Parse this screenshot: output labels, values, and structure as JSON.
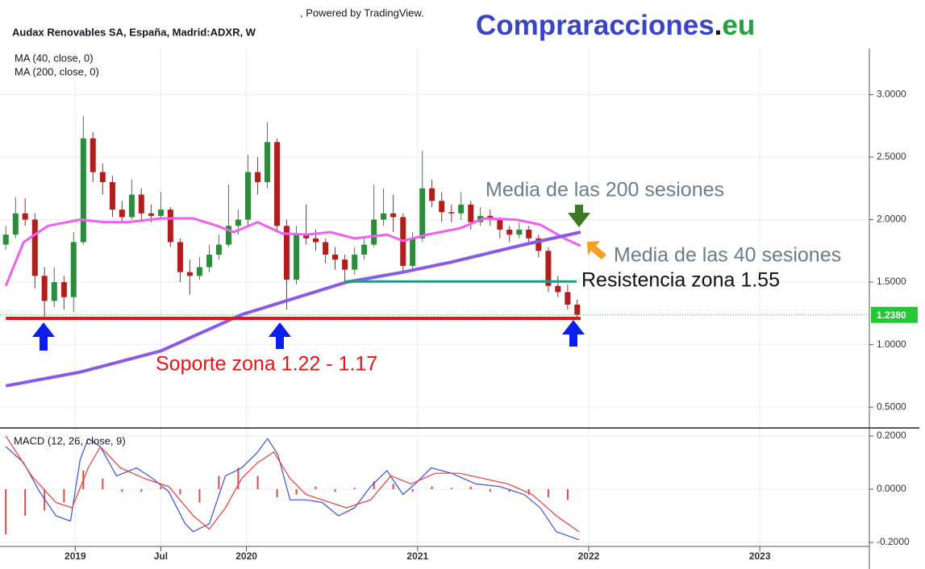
{
  "header": ", Powered by TradingView.",
  "brand": [
    "Compraracciones",
    ".",
    "eu"
  ],
  "chart_data": [
    {
      "type": "candlestick",
      "title": "Audax Renovables SA, España, Madrid:ADXR, W",
      "up_color": "#2e8b3e",
      "down_color": "#b01e1e",
      "xlim": [
        2018.56,
        2023.64
      ],
      "xticks": [
        {
          "value": 2019,
          "label": "2019"
        },
        {
          "value": 2019.5,
          "label": "Jul"
        },
        {
          "value": 2020,
          "label": "2020"
        },
        {
          "value": 2021,
          "label": "2021"
        },
        {
          "value": 2022,
          "label": "2022"
        },
        {
          "value": 2023,
          "label": "2023"
        }
      ],
      "ylim": [
        0.34,
        3.37
      ],
      "yticks": [
        {
          "value": 0.5,
          "label": "0.5000"
        },
        {
          "value": 1,
          "label": "1.0000"
        },
        {
          "value": 1.5,
          "label": "1.5000"
        },
        {
          "value": 2,
          "label": "2.0000"
        },
        {
          "value": 2.5,
          "label": "2.5000"
        },
        {
          "value": 3,
          "label": "3.0000"
        }
      ],
      "grid": true,
      "x": [
        2018.594,
        2018.651,
        2018.707,
        2018.764,
        2018.82,
        2018.877,
        2018.934,
        2018.99,
        2019.047,
        2019.103,
        2019.16,
        2019.217,
        2019.273,
        2019.33,
        2019.386,
        2019.443,
        2019.5,
        2019.556,
        2019.613,
        2019.669,
        2019.726,
        2019.783,
        2019.839,
        2019.896,
        2019.952,
        2020.009,
        2020.066,
        2020.122,
        2020.179,
        2020.235,
        2020.292,
        2020.349,
        2020.405,
        2020.462,
        2020.518,
        2020.575,
        2020.632,
        2020.688,
        2020.745,
        2020.801,
        2020.858,
        2020.915,
        2020.971,
        2021.028,
        2021.084,
        2021.141,
        2021.198,
        2021.254,
        2021.311,
        2021.367,
        2021.424,
        2021.481,
        2021.537,
        2021.594,
        2021.65,
        2021.707,
        2021.764,
        2021.82,
        2021.877,
        2021.933
      ],
      "open": [
        1.8,
        1.88,
        2.05,
        2.0,
        1.55,
        1.35,
        1.5,
        1.38,
        1.82,
        2.65,
        2.38,
        2.3,
        2.08,
        2.02,
        2.2,
        2.05,
        2.03,
        2.08,
        1.82,
        1.58,
        1.55,
        1.62,
        1.72,
        1.8,
        1.95,
        2.0,
        2.38,
        2.3,
        2.62,
        1.95,
        1.52,
        1.88,
        1.85,
        1.82,
        1.72,
        1.68,
        1.6,
        1.72,
        1.8,
        2.0,
        2.05,
        2.02,
        1.63,
        1.85,
        2.25,
        2.15,
        2.06,
        2.05,
        2.12,
        1.98,
        2.03,
        2.0,
        1.92,
        1.88,
        1.92,
        1.85,
        1.75,
        1.47,
        1.42,
        1.32
      ],
      "high": [
        1.95,
        2.18,
        2.17,
        2.05,
        1.62,
        1.62,
        1.55,
        1.9,
        2.83,
        2.7,
        2.45,
        2.35,
        2.15,
        2.32,
        2.25,
        2.12,
        2.22,
        2.1,
        1.85,
        1.68,
        1.7,
        1.8,
        1.88,
        2.28,
        2.08,
        2.52,
        2.5,
        2.78,
        2.65,
        2.0,
        1.95,
        2.12,
        1.92,
        1.85,
        1.78,
        1.72,
        1.78,
        1.85,
        2.28,
        2.25,
        2.2,
        2.05,
        1.9,
        2.55,
        2.32,
        2.22,
        2.12,
        2.22,
        2.15,
        2.1,
        2.08,
        2.02,
        1.95,
        1.98,
        1.95,
        1.88,
        1.78,
        1.55,
        1.48,
        1.36
      ],
      "low": [
        1.76,
        1.85,
        1.95,
        1.45,
        1.22,
        1.3,
        1.28,
        1.26,
        1.8,
        2.3,
        2.2,
        2.02,
        1.98,
        2.0,
        2.0,
        1.98,
        2.0,
        1.78,
        1.5,
        1.4,
        1.52,
        1.58,
        1.68,
        1.78,
        1.88,
        1.95,
        2.2,
        2.25,
        1.9,
        1.28,
        1.48,
        1.8,
        1.75,
        1.65,
        1.6,
        1.48,
        1.56,
        1.68,
        1.78,
        1.95,
        1.9,
        1.58,
        1.6,
        1.82,
        2.1,
        1.98,
        1.98,
        2.0,
        1.92,
        1.95,
        1.95,
        1.85,
        1.82,
        1.85,
        1.8,
        1.7,
        1.42,
        1.38,
        1.28,
        1.22
      ],
      "close": [
        1.88,
        2.05,
        2.0,
        1.55,
        1.35,
        1.5,
        1.38,
        1.82,
        2.65,
        2.38,
        2.3,
        2.08,
        2.02,
        2.2,
        2.05,
        2.03,
        2.08,
        1.82,
        1.58,
        1.55,
        1.62,
        1.72,
        1.8,
        1.95,
        2.0,
        2.38,
        2.3,
        2.62,
        1.95,
        1.52,
        1.88,
        1.85,
        1.82,
        1.72,
        1.68,
        1.6,
        1.72,
        1.8,
        2.0,
        2.05,
        2.02,
        1.63,
        1.85,
        2.25,
        2.15,
        2.06,
        2.05,
        2.12,
        1.98,
        2.03,
        2.0,
        1.92,
        1.88,
        1.92,
        1.85,
        1.75,
        1.47,
        1.42,
        1.32,
        1.24
      ],
      "series": [
        {
          "name": "MA (40, close, 0)",
          "color": "#f060f0",
          "width": 3,
          "x": [
            2018.594,
            2018.698,
            2018.84,
            2019.028,
            2019.17,
            2019.311,
            2019.5,
            2019.689,
            2019.83,
            2019.925,
            2020.066,
            2020.208,
            2020.349,
            2020.491,
            2020.632,
            2020.821,
            2020.915,
            2021.057,
            2021.245,
            2021.387,
            2021.575,
            2021.717,
            2021.858,
            2021.953
          ],
          "values": [
            1.47,
            1.82,
            1.95,
            2.0,
            1.98,
            1.98,
            2.01,
            2.01,
            1.95,
            1.9,
            1.98,
            1.89,
            1.88,
            1.9,
            1.85,
            1.88,
            1.83,
            1.88,
            1.93,
            2.01,
            2.0,
            1.96,
            1.85,
            1.79
          ]
        },
        {
          "name": "MA (200, close, 0)",
          "color": "#8a5ae6",
          "width": 4,
          "x": [
            2018.594,
            2019.028,
            2019.5,
            2019.972,
            2020.349,
            2020.585,
            2020.915,
            2021.198,
            2021.623,
            2021.953
          ],
          "values": [
            0.67,
            0.78,
            0.95,
            1.24,
            1.4,
            1.5,
            1.58,
            1.66,
            1.8,
            1.9
          ]
        }
      ],
      "hlines": [
        {
          "value": 1.21,
          "color": "#ee1111",
          "width": 4,
          "x": [
            2018.594,
            2021.953
          ]
        },
        {
          "value": 1.505,
          "color": "#1e9a86",
          "width": 3,
          "x": [
            2020.575,
            2021.929
          ]
        }
      ],
      "last_price": 1.238,
      "last_price_label": "1.2380",
      "last_price_color": "#22c933",
      "annotations": [
        {
          "text": "Media de las 200 sesiones",
          "color": "#6a7d8c"
        },
        {
          "text": "Media de las 40 sesiones",
          "color": "#6a7d8c"
        },
        {
          "text": "Resistencia zona 1.55",
          "color": "#111111"
        },
        {
          "text": "Soporte zona 1.22 - 1.17",
          "color": "#ee1111"
        }
      ]
    },
    {
      "type": "macd",
      "title": "MACD (12, 26, close, 9)",
      "ylim": [
        -0.215,
        0.218
      ],
      "yticks": [
        {
          "value": -0.2,
          "label": "-0.2000"
        },
        {
          "value": 0,
          "label": "0.0000"
        },
        {
          "value": 0.2,
          "label": "0.2000"
        }
      ],
      "series": [
        {
          "kind": "histogram",
          "color": "#e04848",
          "x": [
            2018.594,
            2018.707,
            2018.82,
            2018.934,
            2019.047,
            2019.16,
            2019.273,
            2019.386,
            2019.5,
            2019.613,
            2019.726,
            2019.839,
            2019.952,
            2020.066,
            2020.179,
            2020.292,
            2020.405,
            2020.518,
            2020.632,
            2020.745,
            2020.858,
            2020.971,
            2021.084,
            2021.198,
            2021.311,
            2021.424,
            2021.537,
            2021.65,
            2021.764,
            2021.877
          ],
          "values": [
            -0.17,
            -0.1,
            -0.08,
            -0.05,
            0.07,
            0.04,
            -0.01,
            -0.01,
            0.01,
            -0.02,
            -0.05,
            0.05,
            0.08,
            0.05,
            -0.03,
            -0.02,
            0.01,
            -0.01,
            0.005,
            0.03,
            0.02,
            -0.01,
            0.01,
            0.005,
            0.01,
            -0.01,
            -0.01,
            -0.02,
            -0.03,
            -0.04
          ]
        },
        {
          "kind": "line",
          "color": "#3a4fe0",
          "x": [
            2018.594,
            2018.698,
            2018.792,
            2018.887,
            2018.972,
            2019.028,
            2019.075,
            2019.146,
            2019.241,
            2019.358,
            2019.453,
            2019.547,
            2019.642,
            2019.689,
            2019.783,
            2019.877,
            2019.972,
            2020.066,
            2020.123,
            2020.184,
            2020.255,
            2020.349,
            2020.443,
            2020.538,
            2020.632,
            2020.726,
            2020.821,
            2020.915,
            2020.986,
            2021.08,
            2021.198,
            2021.34,
            2021.481,
            2021.623,
            2021.717,
            2021.811,
            2021.943
          ],
          "values": [
            0.16,
            0.1,
            -0.01,
            -0.1,
            -0.12,
            0.11,
            0.19,
            0.16,
            0.05,
            0.08,
            0.04,
            -0.01,
            -0.13,
            -0.16,
            -0.13,
            0.05,
            0.08,
            0.14,
            0.19,
            0.13,
            -0.04,
            -0.04,
            -0.05,
            -0.1,
            -0.07,
            0.01,
            0.07,
            -0.02,
            0.02,
            0.08,
            0.06,
            0.02,
            0.01,
            -0.02,
            -0.07,
            -0.16,
            -0.19
          ]
        },
        {
          "kind": "line",
          "color": "#ee3a3a",
          "x": [
            2018.594,
            2018.745,
            2018.887,
            2018.981,
            2019.075,
            2019.146,
            2019.264,
            2019.406,
            2019.547,
            2019.689,
            2019.783,
            2019.877,
            2019.972,
            2020.066,
            2020.16,
            2020.255,
            2020.349,
            2020.443,
            2020.585,
            2020.726,
            2020.844,
            2020.962,
            2021.104,
            2021.245,
            2021.387,
            2021.528,
            2021.67,
            2021.811,
            2021.943
          ],
          "values": [
            0.2,
            0.05,
            -0.05,
            -0.07,
            0.08,
            0.16,
            0.08,
            0.04,
            0.01,
            -0.1,
            -0.15,
            -0.07,
            0.04,
            0.1,
            0.14,
            0.04,
            -0.02,
            -0.04,
            -0.07,
            -0.04,
            0.05,
            0.02,
            0.06,
            0.06,
            0.04,
            0.02,
            -0.02,
            -0.1,
            -0.16
          ]
        }
      ]
    }
  ]
}
